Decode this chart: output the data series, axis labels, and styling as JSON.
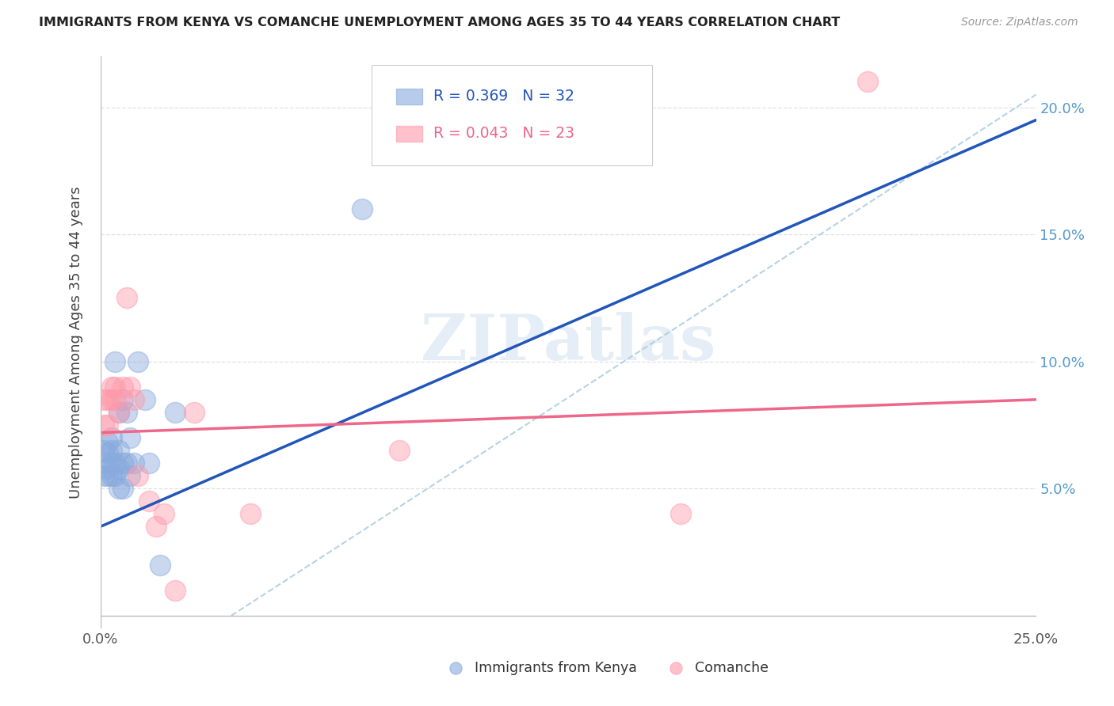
{
  "title": "IMMIGRANTS FROM KENYA VS COMANCHE UNEMPLOYMENT AMONG AGES 35 TO 44 YEARS CORRELATION CHART",
  "source": "Source: ZipAtlas.com",
  "ylabel": "Unemployment Among Ages 35 to 44 years",
  "xlim": [
    0,
    0.25
  ],
  "ylim": [
    -0.005,
    0.22
  ],
  "xtick_positions": [
    0.0,
    0.05,
    0.1,
    0.15,
    0.2,
    0.25
  ],
  "xtick_labels": [
    "0.0%",
    "",
    "",
    "",
    "",
    "25.0%"
  ],
  "ytick_positions": [
    0.05,
    0.1,
    0.15,
    0.2
  ],
  "ytick_labels": [
    "5.0%",
    "10.0%",
    "15.0%",
    "20.0%"
  ],
  "legend_r1": "R = 0.369",
  "legend_n1": "N = 32",
  "legend_r2": "R = 0.043",
  "legend_n2": "N = 23",
  "blue_scatter_color": "#88AADD",
  "pink_scatter_color": "#FF99AA",
  "blue_line_color": "#2255BB",
  "pink_line_color": "#EE6688",
  "grid_color": "#DDDDDD",
  "diag_color": "#AACCDD",
  "watermark": "ZIPatlas",
  "blue_line_x": [
    0.0,
    0.25
  ],
  "blue_line_y": [
    0.035,
    0.195
  ],
  "pink_line_x": [
    0.0,
    0.25
  ],
  "pink_line_y": [
    0.072,
    0.085
  ],
  "diag_line_x": [
    0.035,
    0.25
  ],
  "diag_line_y": [
    0.0,
    0.205
  ],
  "kenya_x": [
    0.001,
    0.001,
    0.001,
    0.002,
    0.002,
    0.002,
    0.002,
    0.003,
    0.003,
    0.003,
    0.003,
    0.004,
    0.004,
    0.004,
    0.005,
    0.005,
    0.005,
    0.005,
    0.006,
    0.006,
    0.006,
    0.007,
    0.007,
    0.008,
    0.008,
    0.009,
    0.01,
    0.012,
    0.013,
    0.016,
    0.02,
    0.07
  ],
  "kenya_y": [
    0.055,
    0.06,
    0.065,
    0.055,
    0.058,
    0.064,
    0.068,
    0.055,
    0.06,
    0.065,
    0.07,
    0.055,
    0.06,
    0.1,
    0.05,
    0.058,
    0.065,
    0.08,
    0.05,
    0.06,
    0.085,
    0.06,
    0.08,
    0.055,
    0.07,
    0.06,
    0.1,
    0.085,
    0.06,
    0.02,
    0.08,
    0.16
  ],
  "comanche_x": [
    0.001,
    0.001,
    0.002,
    0.002,
    0.003,
    0.003,
    0.004,
    0.004,
    0.005,
    0.006,
    0.007,
    0.008,
    0.009,
    0.01,
    0.013,
    0.015,
    0.017,
    0.02,
    0.025,
    0.04,
    0.08,
    0.155,
    0.205
  ],
  "comanche_y": [
    0.075,
    0.085,
    0.075,
    0.085,
    0.09,
    0.085,
    0.085,
    0.09,
    0.08,
    0.09,
    0.125,
    0.09,
    0.085,
    0.055,
    0.045,
    0.035,
    0.04,
    0.01,
    0.08,
    0.04,
    0.065,
    0.04,
    0.21
  ]
}
